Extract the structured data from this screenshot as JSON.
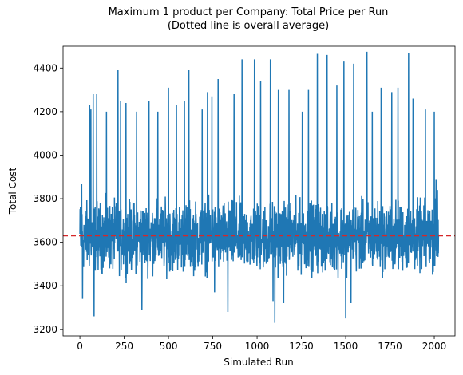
{
  "chart_data": {
    "type": "line",
    "title": "Maximum 1 product per Company: Total Price per Run",
    "subtitle": "(Dotted line is overall average)",
    "xlabel": "Simulated Run",
    "ylabel": "Total Cost",
    "xlim": [
      -95,
      2117
    ],
    "ylim": [
      3170,
      4500
    ],
    "x_ticks": [
      0,
      250,
      500,
      750,
      1000,
      1250,
      1500,
      1750,
      2000
    ],
    "y_ticks": [
      3200,
      3400,
      3600,
      3800,
      4000,
      4200,
      4400
    ],
    "grid": false,
    "series": [
      {
        "color": "#1f77b4",
        "n_points": 2025,
        "baseline_range": [
          3400,
          3850
        ],
        "typical_mean": 3590,
        "spikes": [
          {
            "x": 3,
            "y": 3760
          },
          {
            "x": 10,
            "y": 3870
          },
          {
            "x": 15,
            "y": 3340
          },
          {
            "x": 55,
            "y": 4230
          },
          {
            "x": 62,
            "y": 4210
          },
          {
            "x": 75,
            "y": 4280
          },
          {
            "x": 80,
            "y": 3260
          },
          {
            "x": 95,
            "y": 4280
          },
          {
            "x": 150,
            "y": 4200
          },
          {
            "x": 215,
            "y": 4390
          },
          {
            "x": 230,
            "y": 4250
          },
          {
            "x": 260,
            "y": 4240
          },
          {
            "x": 320,
            "y": 4200
          },
          {
            "x": 350,
            "y": 3290
          },
          {
            "x": 390,
            "y": 4250
          },
          {
            "x": 440,
            "y": 4200
          },
          {
            "x": 500,
            "y": 4310
          },
          {
            "x": 545,
            "y": 4230
          },
          {
            "x": 590,
            "y": 4250
          },
          {
            "x": 615,
            "y": 4390
          },
          {
            "x": 690,
            "y": 4210
          },
          {
            "x": 720,
            "y": 4290
          },
          {
            "x": 745,
            "y": 4270
          },
          {
            "x": 760,
            "y": 3370
          },
          {
            "x": 780,
            "y": 4350
          },
          {
            "x": 835,
            "y": 3280
          },
          {
            "x": 870,
            "y": 4280
          },
          {
            "x": 915,
            "y": 4440
          },
          {
            "x": 985,
            "y": 4440
          },
          {
            "x": 1020,
            "y": 4340
          },
          {
            "x": 1075,
            "y": 4440
          },
          {
            "x": 1090,
            "y": 3330
          },
          {
            "x": 1100,
            "y": 3230
          },
          {
            "x": 1120,
            "y": 4300
          },
          {
            "x": 1150,
            "y": 3320
          },
          {
            "x": 1180,
            "y": 4300
          },
          {
            "x": 1255,
            "y": 4200
          },
          {
            "x": 1290,
            "y": 4300
          },
          {
            "x": 1340,
            "y": 4465
          },
          {
            "x": 1395,
            "y": 4460
          },
          {
            "x": 1450,
            "y": 4320
          },
          {
            "x": 1490,
            "y": 4430
          },
          {
            "x": 1500,
            "y": 3250
          },
          {
            "x": 1530,
            "y": 3320
          },
          {
            "x": 1545,
            "y": 4420
          },
          {
            "x": 1620,
            "y": 4475
          },
          {
            "x": 1650,
            "y": 4200
          },
          {
            "x": 1700,
            "y": 4310
          },
          {
            "x": 1760,
            "y": 4290
          },
          {
            "x": 1795,
            "y": 4310
          },
          {
            "x": 1855,
            "y": 4470
          },
          {
            "x": 1880,
            "y": 4260
          },
          {
            "x": 1950,
            "y": 4210
          },
          {
            "x": 2000,
            "y": 4200
          },
          {
            "x": 2010,
            "y": 3890
          },
          {
            "x": 2018,
            "y": 3840
          }
        ]
      }
    ],
    "average_line": {
      "y": 3630,
      "color": "#d62728",
      "style": "dashed"
    }
  }
}
